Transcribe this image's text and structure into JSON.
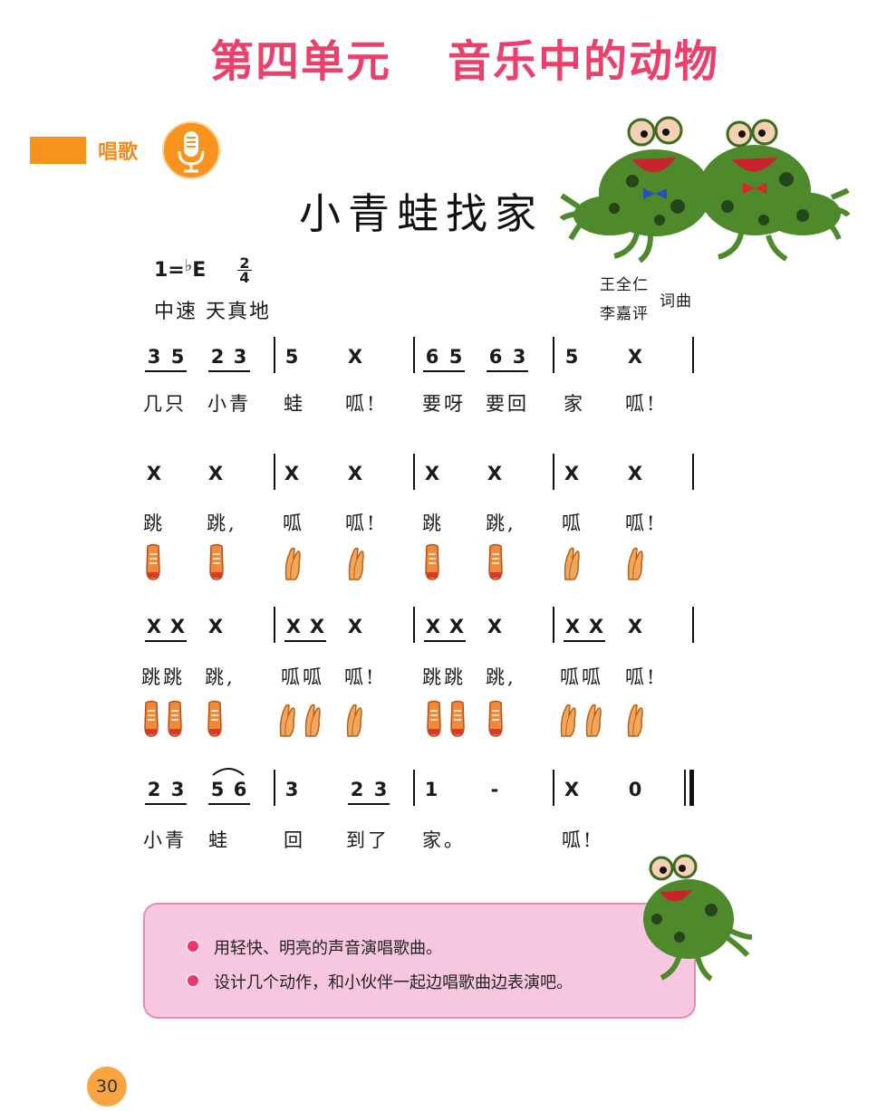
{
  "unit": {
    "part1": "第四单元",
    "part2": "音乐中的动物"
  },
  "section": {
    "label": "唱歌",
    "icon": "microphone-icon"
  },
  "song": {
    "title": "小青蛙找家",
    "key": "1=",
    "key_flat": "♭",
    "key_note": "E",
    "time_top": "2",
    "time_bottom": "4",
    "tempo": "中速 天真地",
    "credit_line1": "王全仁",
    "credit_line2": "李嘉评",
    "credit_role": "词曲"
  },
  "score": {
    "row1": {
      "notes": [
        "3",
        "5",
        "2",
        "3",
        "5",
        "X",
        "6",
        "5",
        "6",
        "3",
        "5",
        "X"
      ]
    },
    "row2": {
      "notes": [
        "X",
        "X",
        "X",
        "X",
        "X",
        "X",
        "X",
        "X"
      ]
    },
    "row3": {
      "notes": [
        "X",
        "X",
        "X",
        "X",
        "X",
        "X",
        "X",
        "X",
        "X",
        "X",
        "X",
        "X"
      ]
    },
    "row4": {
      "notes": [
        "2",
        "3",
        "5",
        "6",
        "3",
        "2",
        "3",
        "1",
        "-",
        "X",
        "0"
      ]
    }
  },
  "lyrics": {
    "row1": [
      "几只",
      "小青",
      "蛙",
      "呱!",
      "要呀",
      "要回",
      "家",
      "呱!"
    ],
    "row2": [
      "跳",
      "跳,",
      "呱",
      "呱!",
      "跳",
      "跳,",
      "呱",
      "呱!"
    ],
    "row3": [
      "跳跳",
      "跳,",
      "呱呱",
      "呱!",
      "跳跳",
      "跳,",
      "呱呱",
      "呱!"
    ],
    "row4": [
      "小青",
      "蛙",
      "回",
      "到了",
      "家。",
      "呱!"
    ]
  },
  "gestures": {
    "row2": [
      "stomp-icon",
      "stomp-icon",
      "clap-icon",
      "clap-icon",
      "stomp-icon",
      "stomp-icon",
      "clap-icon",
      "clap-icon"
    ],
    "row3": [
      "stomp-icon",
      "stomp-icon",
      "stomp-icon",
      "clap-icon",
      "clap-icon",
      "clap-icon",
      "stomp-icon",
      "stomp-icon",
      "stomp-icon",
      "clap-icon",
      "clap-icon",
      "clap-icon"
    ]
  },
  "tips": [
    "用轻快、明亮的声音演唱歌曲。",
    "设计几个动作，和小伙伴一起边唱歌曲边表演吧。"
  ],
  "page_number": "30",
  "colors": {
    "title": "#e9406c",
    "section": "#f7931e",
    "tip_box": "#f7c7df",
    "frog": "#4e8a2c"
  }
}
